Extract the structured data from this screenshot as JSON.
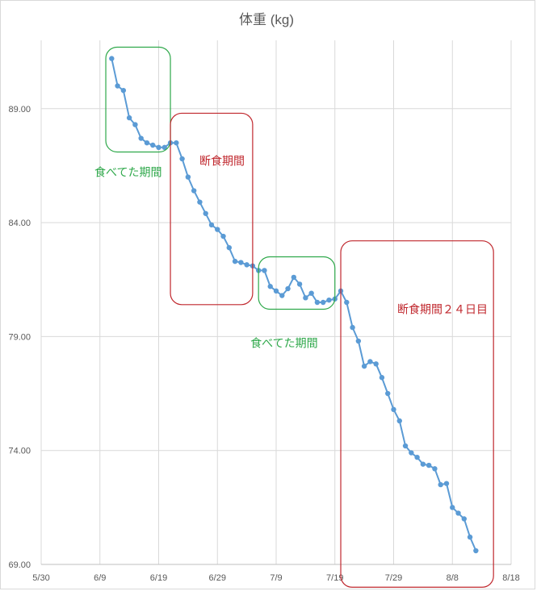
{
  "chart_data": {
    "type": "line",
    "title": "体重 (kg)",
    "xlabel": "",
    "ylabel": "",
    "xlim": [
      "2019-05-30",
      "2019-08-18"
    ],
    "ylim": [
      69.0,
      92.0
    ],
    "x_ticks": [
      "5/30",
      "6/9",
      "6/19",
      "6/29",
      "7/9",
      "7/19",
      "7/29",
      "8/8",
      "8/18"
    ],
    "y_ticks": [
      "69.00",
      "74.00",
      "79.00",
      "84.00",
      "89.00"
    ],
    "grid": true,
    "legend": "none",
    "series_color": "#5b9bd5",
    "series": [
      {
        "x": [
          "2019-06-11",
          "2019-06-12",
          "2019-06-13",
          "2019-06-14",
          "2019-06-15",
          "2019-06-16",
          "2019-06-17",
          "2019-06-18",
          "2019-06-19",
          "2019-06-20",
          "2019-06-21",
          "2019-06-22",
          "2019-06-23",
          "2019-06-24",
          "2019-06-25",
          "2019-06-26",
          "2019-06-27",
          "2019-06-28",
          "2019-06-29",
          "2019-06-30",
          "2019-07-01",
          "2019-07-02",
          "2019-07-03",
          "2019-07-04",
          "2019-07-05",
          "2019-07-06",
          "2019-07-07",
          "2019-07-08",
          "2019-07-09",
          "2019-07-10",
          "2019-07-11",
          "2019-07-12",
          "2019-07-13",
          "2019-07-14",
          "2019-07-15",
          "2019-07-16",
          "2019-07-17",
          "2019-07-18",
          "2019-07-19",
          "2019-07-20",
          "2019-07-21",
          "2019-07-22",
          "2019-07-23",
          "2019-07-24",
          "2019-07-25",
          "2019-07-26",
          "2019-07-27",
          "2019-07-28",
          "2019-07-29",
          "2019-07-30",
          "2019-07-31",
          "2019-08-01",
          "2019-08-02",
          "2019-08-03",
          "2019-08-04",
          "2019-08-05",
          "2019-08-06",
          "2019-08-07",
          "2019-08-08",
          "2019-08-09",
          "2019-08-10",
          "2019-08-11",
          "2019-08-12"
        ],
        "values": [
          91.2,
          90.0,
          89.8,
          88.6,
          88.3,
          87.7,
          87.5,
          87.4,
          87.3,
          87.3,
          87.5,
          87.5,
          86.8,
          86.0,
          85.4,
          84.9,
          84.4,
          83.9,
          83.7,
          83.4,
          82.9,
          82.3,
          82.25,
          82.15,
          82.1,
          81.9,
          81.9,
          81.2,
          81.0,
          80.8,
          81.1,
          81.6,
          81.3,
          80.7,
          80.9,
          80.5,
          80.5,
          80.6,
          80.65,
          81.0,
          80.5,
          79.4,
          78.8,
          77.7,
          77.9,
          77.8,
          77.2,
          76.5,
          75.8,
          75.3,
          74.2,
          73.9,
          73.7,
          73.4,
          73.35,
          73.2,
          72.5,
          72.55,
          71.5,
          71.25,
          71.0,
          70.2,
          69.6
        ]
      }
    ],
    "annotations": [
      {
        "text": "食べてた期間",
        "color": "#2ea84a",
        "box_x": [
          "2019-06-10",
          "2019-06-21"
        ],
        "box_y": [
          87.1,
          91.7
        ]
      },
      {
        "text": "断食期間",
        "color": "#c0272d",
        "box_x": [
          "2019-06-21",
          "2019-07-05"
        ],
        "box_y": [
          80.4,
          88.8
        ]
      },
      {
        "text": "食べてた期間",
        "color": "#2ea84a",
        "box_x": [
          "2019-07-06",
          "2019-07-19"
        ],
        "box_y": [
          80.2,
          82.5
        ]
      },
      {
        "text": "断食期間２４日目",
        "color": "#c0272d",
        "box_x": [
          "2019-07-20",
          "2019-08-15"
        ],
        "box_y": [
          68.0,
          83.2
        ]
      }
    ]
  }
}
